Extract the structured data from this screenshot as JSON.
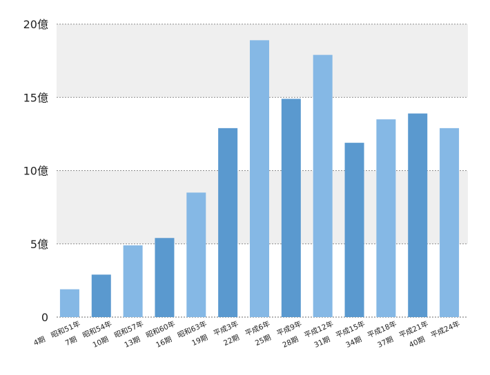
{
  "chart_data": {
    "type": "bar",
    "title": "",
    "xlabel": "",
    "ylabel": "",
    "ylim": [
      0,
      20
    ],
    "y_ticks": [
      {
        "value": 0,
        "label": "0"
      },
      {
        "value": 5,
        "label": "5億"
      },
      {
        "value": 10,
        "label": "10億"
      },
      {
        "value": 15,
        "label": "15億"
      },
      {
        "value": 20,
        "label": "20億"
      }
    ],
    "categories": [
      "4期　昭和51年",
      "7期　昭和54年",
      "10期　昭和57年",
      "13期　昭和60年",
      "16期　昭和63年",
      "19期　平成3年",
      "22期　平成6年",
      "25期　平成9年",
      "28期　平成12年",
      "31期　平成15年",
      "34期　平成18年",
      "37期　平成21年",
      "40期　平成24年"
    ],
    "values": [
      1.9,
      2.9,
      4.9,
      5.4,
      8.5,
      12.9,
      18.9,
      14.9,
      17.9,
      11.9,
      13.5,
      13.9,
      12.9
    ],
    "colors": {
      "bar_light": "#85b8e5",
      "bar_dark": "#5a99cf",
      "band": "#efefef",
      "grid": "#8a8a8a",
      "axis": "#666666"
    },
    "grid": true,
    "legend": "none"
  }
}
